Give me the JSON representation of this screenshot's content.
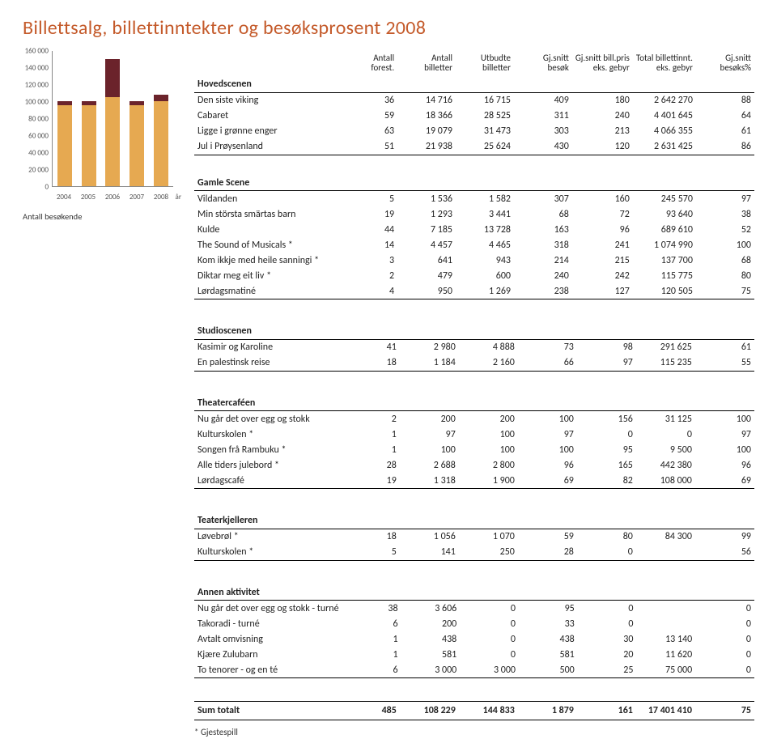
{
  "title": "Billettsalg, billettinntekter og besøksprosent 2008",
  "chart": {
    "caption": "Antall besøkende",
    "x_unit": "år",
    "yticks": [
      0,
      20000,
      40000,
      60000,
      80000,
      100000,
      120000,
      140000,
      160000
    ],
    "ytick_labels": [
      "0",
      "20 000",
      "40 000",
      "60 000",
      "80 000",
      "100 000",
      "120 000",
      "140 000",
      "160 000"
    ],
    "ymax": 160000,
    "years": [
      "2004",
      "2005",
      "2006",
      "2007",
      "2008"
    ],
    "values_total": [
      100000,
      100000,
      150000,
      100000,
      108000
    ],
    "values_lower": [
      95000,
      95000,
      105000,
      95000,
      100000
    ],
    "bar_color_upper": "#6b232b",
    "bar_color_lower": "#e6a951",
    "axis_color": "#888888",
    "label_fontsize": 9
  },
  "columns": [
    {
      "line1": "",
      "line2": ""
    },
    {
      "line1": "Antall",
      "line2": "forest."
    },
    {
      "line1": "Antall",
      "line2": "billetter"
    },
    {
      "line1": "Utbudte",
      "line2": "billetter"
    },
    {
      "line1": "Gj.snitt",
      "line2": "besøk"
    },
    {
      "line1": "Gj.snitt bill.pris",
      "line2": "eks. gebyr"
    },
    {
      "line1": "Total billettinnt.",
      "line2": "eks. gebyr"
    },
    {
      "line1": "Gj.snitt",
      "line2": "besøks%"
    }
  ],
  "sections": [
    {
      "title": "Hovedscenen",
      "rows": [
        [
          "Den siste viking",
          "36",
          "14 716",
          "16 715",
          "409",
          "180",
          "2 642 270",
          "88"
        ],
        [
          "Cabaret",
          "59",
          "18 366",
          "28 525",
          "311",
          "240",
          "4 401 645",
          "64"
        ],
        [
          "Ligge i grønne enger",
          "63",
          "19 079",
          "31 473",
          "303",
          "213",
          "4 066 355",
          "61"
        ],
        [
          "Jul i Prøysenland",
          "51",
          "21 938",
          "25 624",
          "430",
          "120",
          "2 631 425",
          "86"
        ]
      ]
    },
    {
      "title": "Gamle Scene",
      "rows": [
        [
          "Vildanden",
          "5",
          "1 536",
          "1 582",
          "307",
          "160",
          "245 570",
          "97"
        ],
        [
          "Min största smärtas barn",
          "19",
          "1 293",
          "3 441",
          "68",
          "72",
          "93 640",
          "38"
        ],
        [
          "Kulde",
          "44",
          "7 185",
          "13 728",
          "163",
          "96",
          "689 610",
          "52"
        ],
        [
          "The Sound of Musicals *",
          "14",
          "4 457",
          "4 465",
          "318",
          "241",
          "1 074 990",
          "100"
        ],
        [
          "Kom ikkje med heile sanningi *",
          "3",
          "641",
          "943",
          "214",
          "215",
          "137 700",
          "68"
        ],
        [
          "Diktar meg eit liv *",
          "2",
          "479",
          "600",
          "240",
          "242",
          "115 775",
          "80"
        ],
        [
          "Lørdagsmatiné",
          "4",
          "950",
          "1 269",
          "238",
          "127",
          "120 505",
          "75"
        ]
      ]
    },
    {
      "title": "Studioscenen",
      "rows": [
        [
          "Kasimir og Karoline",
          "41",
          "2 980",
          "4 888",
          "73",
          "98",
          "291 625",
          "61"
        ],
        [
          "En palestinsk reise",
          "18",
          "1 184",
          "2 160",
          "66",
          "97",
          "115 235",
          "55"
        ]
      ]
    },
    {
      "title": "Theatercaféen",
      "rows": [
        [
          "Nu går det over egg og stokk",
          "2",
          "200",
          "200",
          "100",
          "156",
          "31 125",
          "100"
        ],
        [
          "Kulturskolen *",
          "1",
          "97",
          "100",
          "97",
          "0",
          "0",
          "97"
        ],
        [
          "Songen frå Rambuku *",
          "1",
          "100",
          "100",
          "100",
          "95",
          "9 500",
          "100"
        ],
        [
          "Alle tiders julebord *",
          "28",
          "2 688",
          "2 800",
          "96",
          "165",
          "442 380",
          "96"
        ],
        [
          "Lørdagscafé",
          "19",
          "1 318",
          "1 900",
          "69",
          "82",
          "108 000",
          "69"
        ]
      ]
    },
    {
      "title": "Teaterkjelleren",
      "rows": [
        [
          "Løvebrøl *",
          "18",
          "1 056",
          "1 070",
          "59",
          "80",
          "84 300",
          "99"
        ],
        [
          "Kulturskolen *",
          "5",
          "141",
          "250",
          "28",
          "0",
          "",
          "56"
        ]
      ]
    },
    {
      "title": "Annen aktivitet",
      "rows": [
        [
          "Nu går det over egg og stokk - turné",
          "38",
          "3 606",
          "0",
          "95",
          "0",
          "",
          "0"
        ],
        [
          "Takoradi - turné",
          "6",
          "200",
          "0",
          "33",
          "0",
          "",
          "0"
        ],
        [
          "Avtalt omvisning",
          "1",
          "438",
          "0",
          "438",
          "30",
          "13 140",
          "0"
        ],
        [
          "Kjære Zulubarn",
          "1",
          "581",
          "0",
          "581",
          "20",
          "11 620",
          "0"
        ],
        [
          "To tenorer - og en té",
          "6",
          "3 000",
          "3 000",
          "500",
          "25",
          "75 000",
          "0"
        ]
      ]
    }
  ],
  "totals": [
    "Sum totalt",
    "485",
    "108 229",
    "144 833",
    "1 879",
    "161",
    "17 401 410",
    "75"
  ],
  "note": "*  Gjestespill"
}
